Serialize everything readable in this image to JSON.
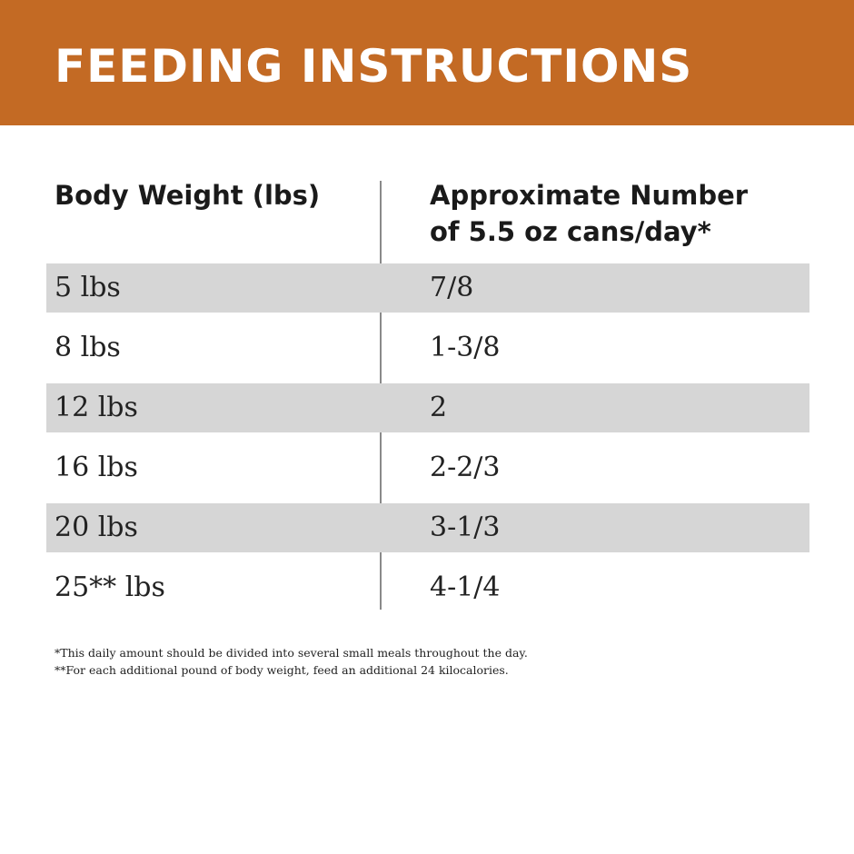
{
  "header": {
    "title": "FEEDING INSTRUCTIONS"
  },
  "table": {
    "columns": [
      "Body Weight (lbs)",
      "Approximate Number of 5.5 oz cans/day*"
    ],
    "column_right_lines": [
      "Approximate Number",
      "of 5.5 oz cans/day*"
    ],
    "rows": [
      {
        "weight": "5 lbs",
        "amount": "7/8"
      },
      {
        "weight": "8 lbs",
        "amount": "1-3/8"
      },
      {
        "weight": "12 lbs",
        "amount": "2"
      },
      {
        "weight": "16 lbs",
        "amount": "2-2/3"
      },
      {
        "weight": "20 lbs",
        "amount": "3-1/3"
      },
      {
        "weight": "25** lbs",
        "amount": "4-1/4"
      }
    ]
  },
  "footnotes": [
    "*This daily amount should be divided into several small meals throughout the day.",
    "**For each additional pound of body weight, feed an additional 24 kilocalories."
  ],
  "colors": {
    "banner": "#c36a24",
    "row_shade": "#d6d6d6"
  }
}
